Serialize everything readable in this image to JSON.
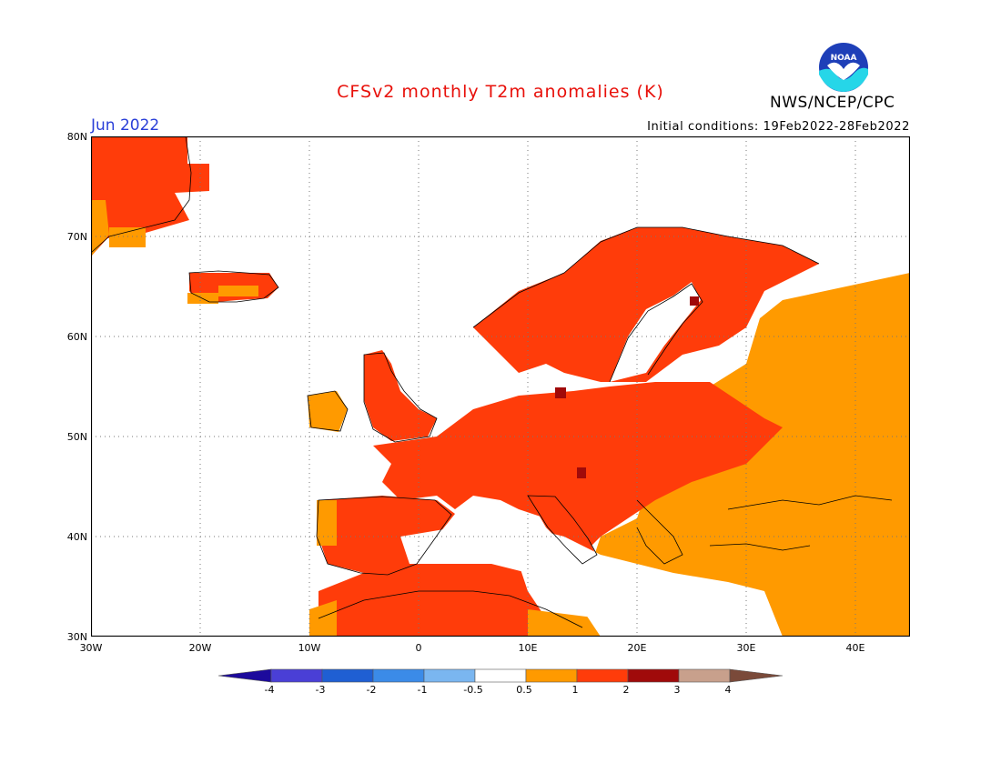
{
  "header": {
    "title": "CFSv2 monthly T2m anomalies (K)",
    "agency": "NWS/NCEP/CPC",
    "month": "Jun 2022",
    "initial_conditions": "Initial conditions: 19Feb2022-28Feb2022",
    "logo_text": "NOAA"
  },
  "map": {
    "lon_range": [
      -30,
      45
    ],
    "lat_range": [
      30,
      80
    ],
    "grid": "dotted 10-degree",
    "lat_labels": [
      "80N",
      "70N",
      "60N",
      "50N",
      "40N",
      "30N"
    ],
    "lon_labels": [
      "30W",
      "20W",
      "10W",
      "0",
      "10E",
      "20E",
      "30E",
      "40E"
    ],
    "anomaly_regions": [
      {
        "area": "Greenland",
        "category": "1 to 2"
      },
      {
        "area": "Iceland",
        "category": "1 to 2"
      },
      {
        "area": "Scandinavia",
        "category": "1 to 2"
      },
      {
        "area": "Western and Central Europe",
        "category": "1 to 2"
      },
      {
        "area": "Iberian Peninsula",
        "category": "1 to 2"
      },
      {
        "area": "North Africa",
        "category": "1 to 2"
      },
      {
        "area": "Eastern Europe / Russia",
        "category": "0.5 to 1"
      },
      {
        "area": "Turkey / Middle East",
        "category": "0.5 to 1"
      },
      {
        "area": "Mediterranean Sea",
        "category": "-0.5 to 0.5"
      },
      {
        "area": "Slovenia / Baltic coast spots",
        "category": "2 to 3"
      }
    ]
  },
  "colorbar": {
    "labels": [
      "-4",
      "-3",
      "-2",
      "-1",
      "-0.5",
      "0.5",
      "1",
      "2",
      "3",
      "4"
    ],
    "colors": [
      "#1c0a9c",
      "#4a3fd6",
      "#1f5fd3",
      "#3b8be8",
      "#7ab6f0",
      "#ffffff",
      "#ff9a00",
      "#ff3c0a",
      "#a00a0a",
      "#c8a08c",
      "#7a4a3a"
    ]
  }
}
